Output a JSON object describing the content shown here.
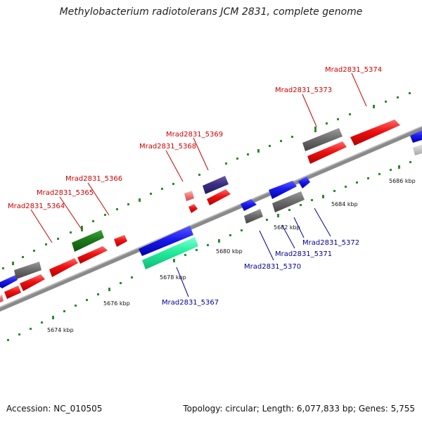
{
  "title": "Methylobacterium radiotolerans JCM 2831, complete genome",
  "footer": {
    "accession": "Accession: NC_010505",
    "summary": "Topology: circular; Length: 6,077,833 bp; Genes: 5,755"
  },
  "colors": {
    "forward_label": "#cc0000",
    "reverse_label": "#000099",
    "backbone": "#8a8a8a",
    "tick_mark": "#2e8b2e"
  },
  "scale_labels": [
    "5674 kbp",
    "5676 kbp",
    "5678 kbp",
    "5680 kbp",
    "5682 kbp",
    "5684 kbp",
    "5686 kbp"
  ],
  "gene_labels": {
    "forward": [
      "Mrad2831_5364",
      "Mrad2831_5365",
      "Mrad2831_5366",
      "Mrad2831_5368",
      "Mrad2831_5369",
      "Mrad2831_5373",
      "Mrad2831_5374"
    ],
    "reverse": [
      "Mrad2831_5367",
      "Mrad2831_5370",
      "Mrad2831_5371",
      "Mrad2831_5372"
    ]
  }
}
